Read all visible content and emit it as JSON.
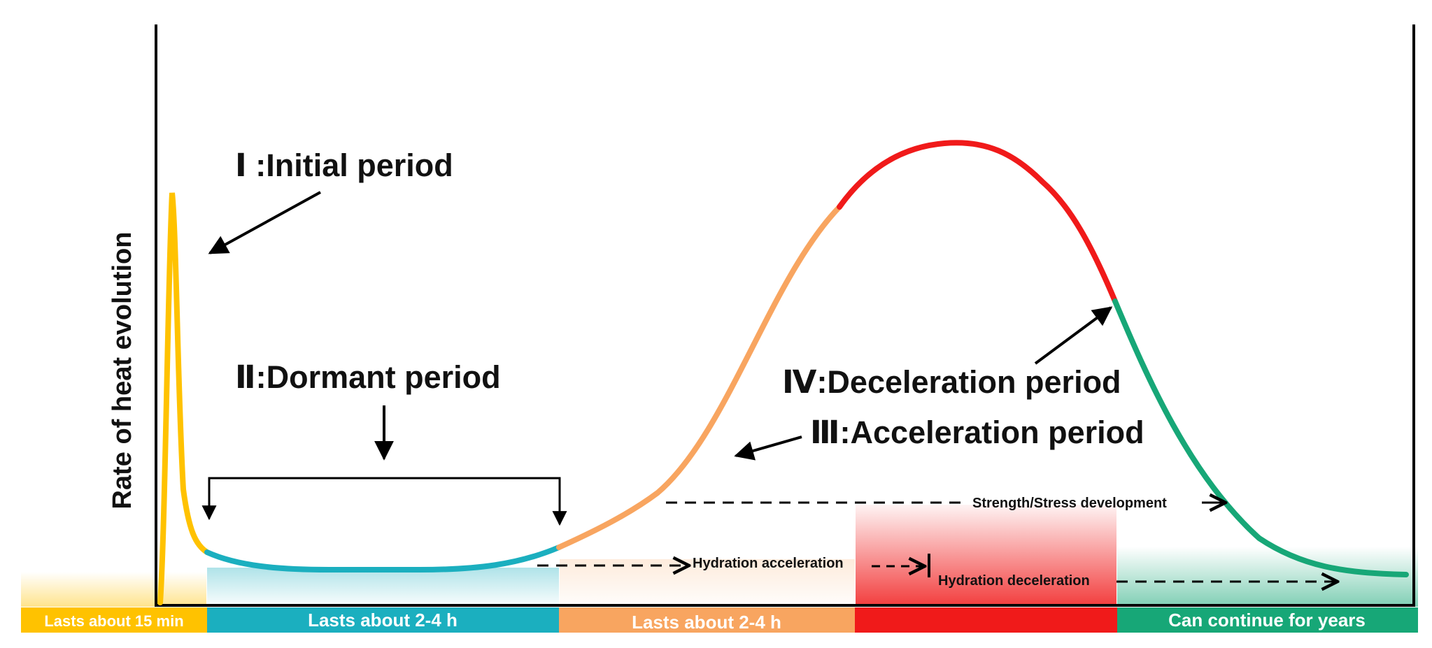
{
  "diagram": {
    "y_axis_label": "Rate of heat evolution",
    "periods": {
      "initial": "Ⅰ :Initial period",
      "dormant": "Ⅱ:Dormant period",
      "acceleration": "Ⅲ:Acceleration period",
      "deceleration": "Ⅳ:Deceleration period"
    },
    "processes": {
      "strength": "Strength/Stress development",
      "hydration_acc": "Hydration acceleration",
      "hydration_dec": "Hydration deceleration"
    },
    "durations": {
      "initial": "Lasts about 15 min",
      "dormant": "Lasts about 2-4 h",
      "acceleration": "Lasts about 2-4 h",
      "deceleration": "",
      "diffusion": "Can continue for years"
    },
    "colors": {
      "initial": "#FFC200",
      "dormant": "#1BAFBF",
      "acceleration": "#F8A560",
      "deceleration": "#F01A1A",
      "diffusion": "#17A777",
      "axis": "#000000"
    }
  }
}
